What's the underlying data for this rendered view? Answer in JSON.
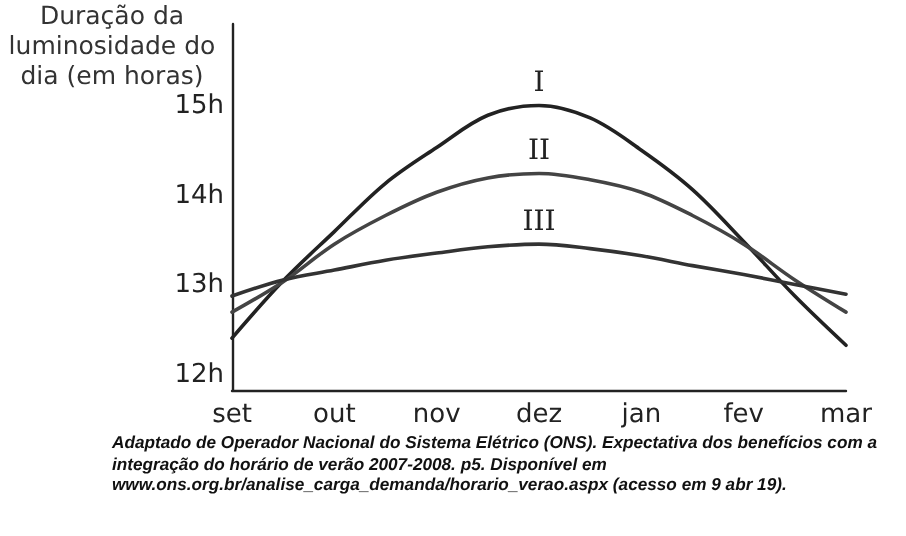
{
  "chart_data": {
    "type": "line",
    "ylabel": "Duração da luminosidade do dia (em horas)",
    "annotations": [
      "Adaptado de Operador Nacional do Sistema Elétrico (ONS). Expectativa dos benefícios com a integração do horário de verão  2007-2008. p5. Disponível em www.ons.org.br/analise_carga_demanda/horario_verao.aspx (acesso em 9 abr 19)."
    ],
    "categories": [
      "set",
      null,
      "out",
      null,
      "nov",
      null,
      "dez",
      null,
      "jan",
      null,
      "fev",
      null,
      "mar"
    ],
    "series": [
      {
        "name": "I",
        "color": "#222222",
        "values": [
          12.41,
          13.05,
          13.6,
          14.14,
          14.54,
          14.9,
          15.01,
          14.87,
          14.51,
          14.07,
          13.49,
          12.88,
          12.33
        ]
      },
      {
        "name": "II",
        "color": "#444444",
        "values": [
          12.7,
          13.04,
          13.46,
          13.78,
          14.04,
          14.2,
          14.25,
          14.18,
          14.04,
          13.78,
          13.46,
          13.06,
          12.7
        ]
      },
      {
        "name": "III",
        "color": "#333333",
        "values": [
          12.88,
          13.06,
          13.17,
          13.28,
          13.36,
          13.43,
          13.46,
          13.41,
          13.33,
          13.22,
          13.12,
          13.01,
          12.9
        ]
      }
    ],
    "ylim": [
      11.83,
      15.92
    ],
    "yticks": [
      {
        "value": 12,
        "label": "12h"
      },
      {
        "value": 13,
        "label": "13h"
      },
      {
        "value": 14,
        "label": "14h"
      },
      {
        "value": 15,
        "label": "15h"
      }
    ],
    "grid": false,
    "legend": false,
    "marker": "none",
    "line_style": "solid"
  }
}
